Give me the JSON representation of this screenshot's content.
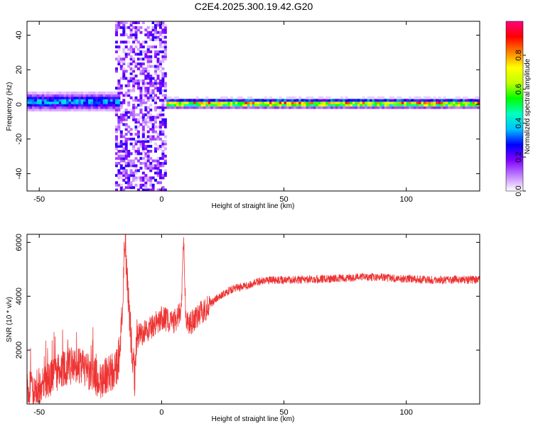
{
  "title": "C2E4.2025.300.19.42.G20",
  "chart_data": [
    {
      "type": "heatmap",
      "xlabel": "Height of straight line (km)",
      "ylabel": "Frequency (Hz)",
      "xlim": [
        -55,
        130
      ],
      "ylim": [
        -50,
        48
      ],
      "xticks": [
        -50,
        0,
        50,
        100
      ],
      "yticks": [
        -40,
        -20,
        0,
        20,
        40
      ],
      "colorbar": {
        "label": "Normalized spectral amplitude",
        "range": [
          0,
          1
        ],
        "ticks": [
          "0.0",
          "0.2",
          "0.4",
          "0.6",
          "0.8"
        ],
        "tick_values": [
          0,
          0.2,
          0.4,
          0.6,
          0.8
        ],
        "colormap": [
          "#ffffff",
          "#c080ff",
          "#8000ff",
          "#0000ff",
          "#00c0ff",
          "#00ffc0",
          "#00ff00",
          "#c0ff00",
          "#ffff00",
          "#ff8000",
          "#ff0000",
          "#ff0080"
        ]
      },
      "features": [
        {
          "x_range": [
            -55,
            -18
          ],
          "freq_center": 1,
          "half_width_hz": 5,
          "amplitude": 0.4
        },
        {
          "x_range": [
            -19,
            1
          ],
          "freq_range": [
            -50,
            48
          ],
          "amplitude": 0.15
        },
        {
          "x_range": [
            2,
            130
          ],
          "freq_center": 0,
          "half_width_hz": 2.5,
          "peak_amplitude": 0.9
        }
      ]
    },
    {
      "type": "line",
      "xlabel": "Height of straight line (km)",
      "ylabel": "SNR (10 * v/v)",
      "xlim": [
        -55,
        130
      ],
      "ylim": [
        0,
        6300
      ],
      "xticks": [
        -50,
        0,
        50,
        100
      ],
      "yticks": [
        2000,
        4000,
        6000
      ],
      "series": [
        {
          "color": "#ee3333",
          "x": [
            -55,
            -50,
            -45,
            -40,
            -35,
            -30,
            -25,
            -20,
            -17,
            -15,
            -13,
            -11,
            -10,
            -5,
            0,
            5,
            8,
            9,
            10,
            12,
            15,
            20,
            25,
            30,
            35,
            40,
            45,
            50,
            60,
            70,
            80,
            90,
            100,
            110,
            120,
            130
          ],
          "y": [
            500,
            700,
            1000,
            1300,
            1500,
            1200,
            900,
            1200,
            1500,
            6200,
            3000,
            1000,
            2500,
            2800,
            3200,
            3000,
            3500,
            6000,
            3000,
            3000,
            3300,
            3700,
            4100,
            4300,
            4400,
            4550,
            4600,
            4600,
            4620,
            4650,
            4700,
            4700,
            4650,
            4600,
            4620,
            4600
          ]
        }
      ]
    }
  ]
}
